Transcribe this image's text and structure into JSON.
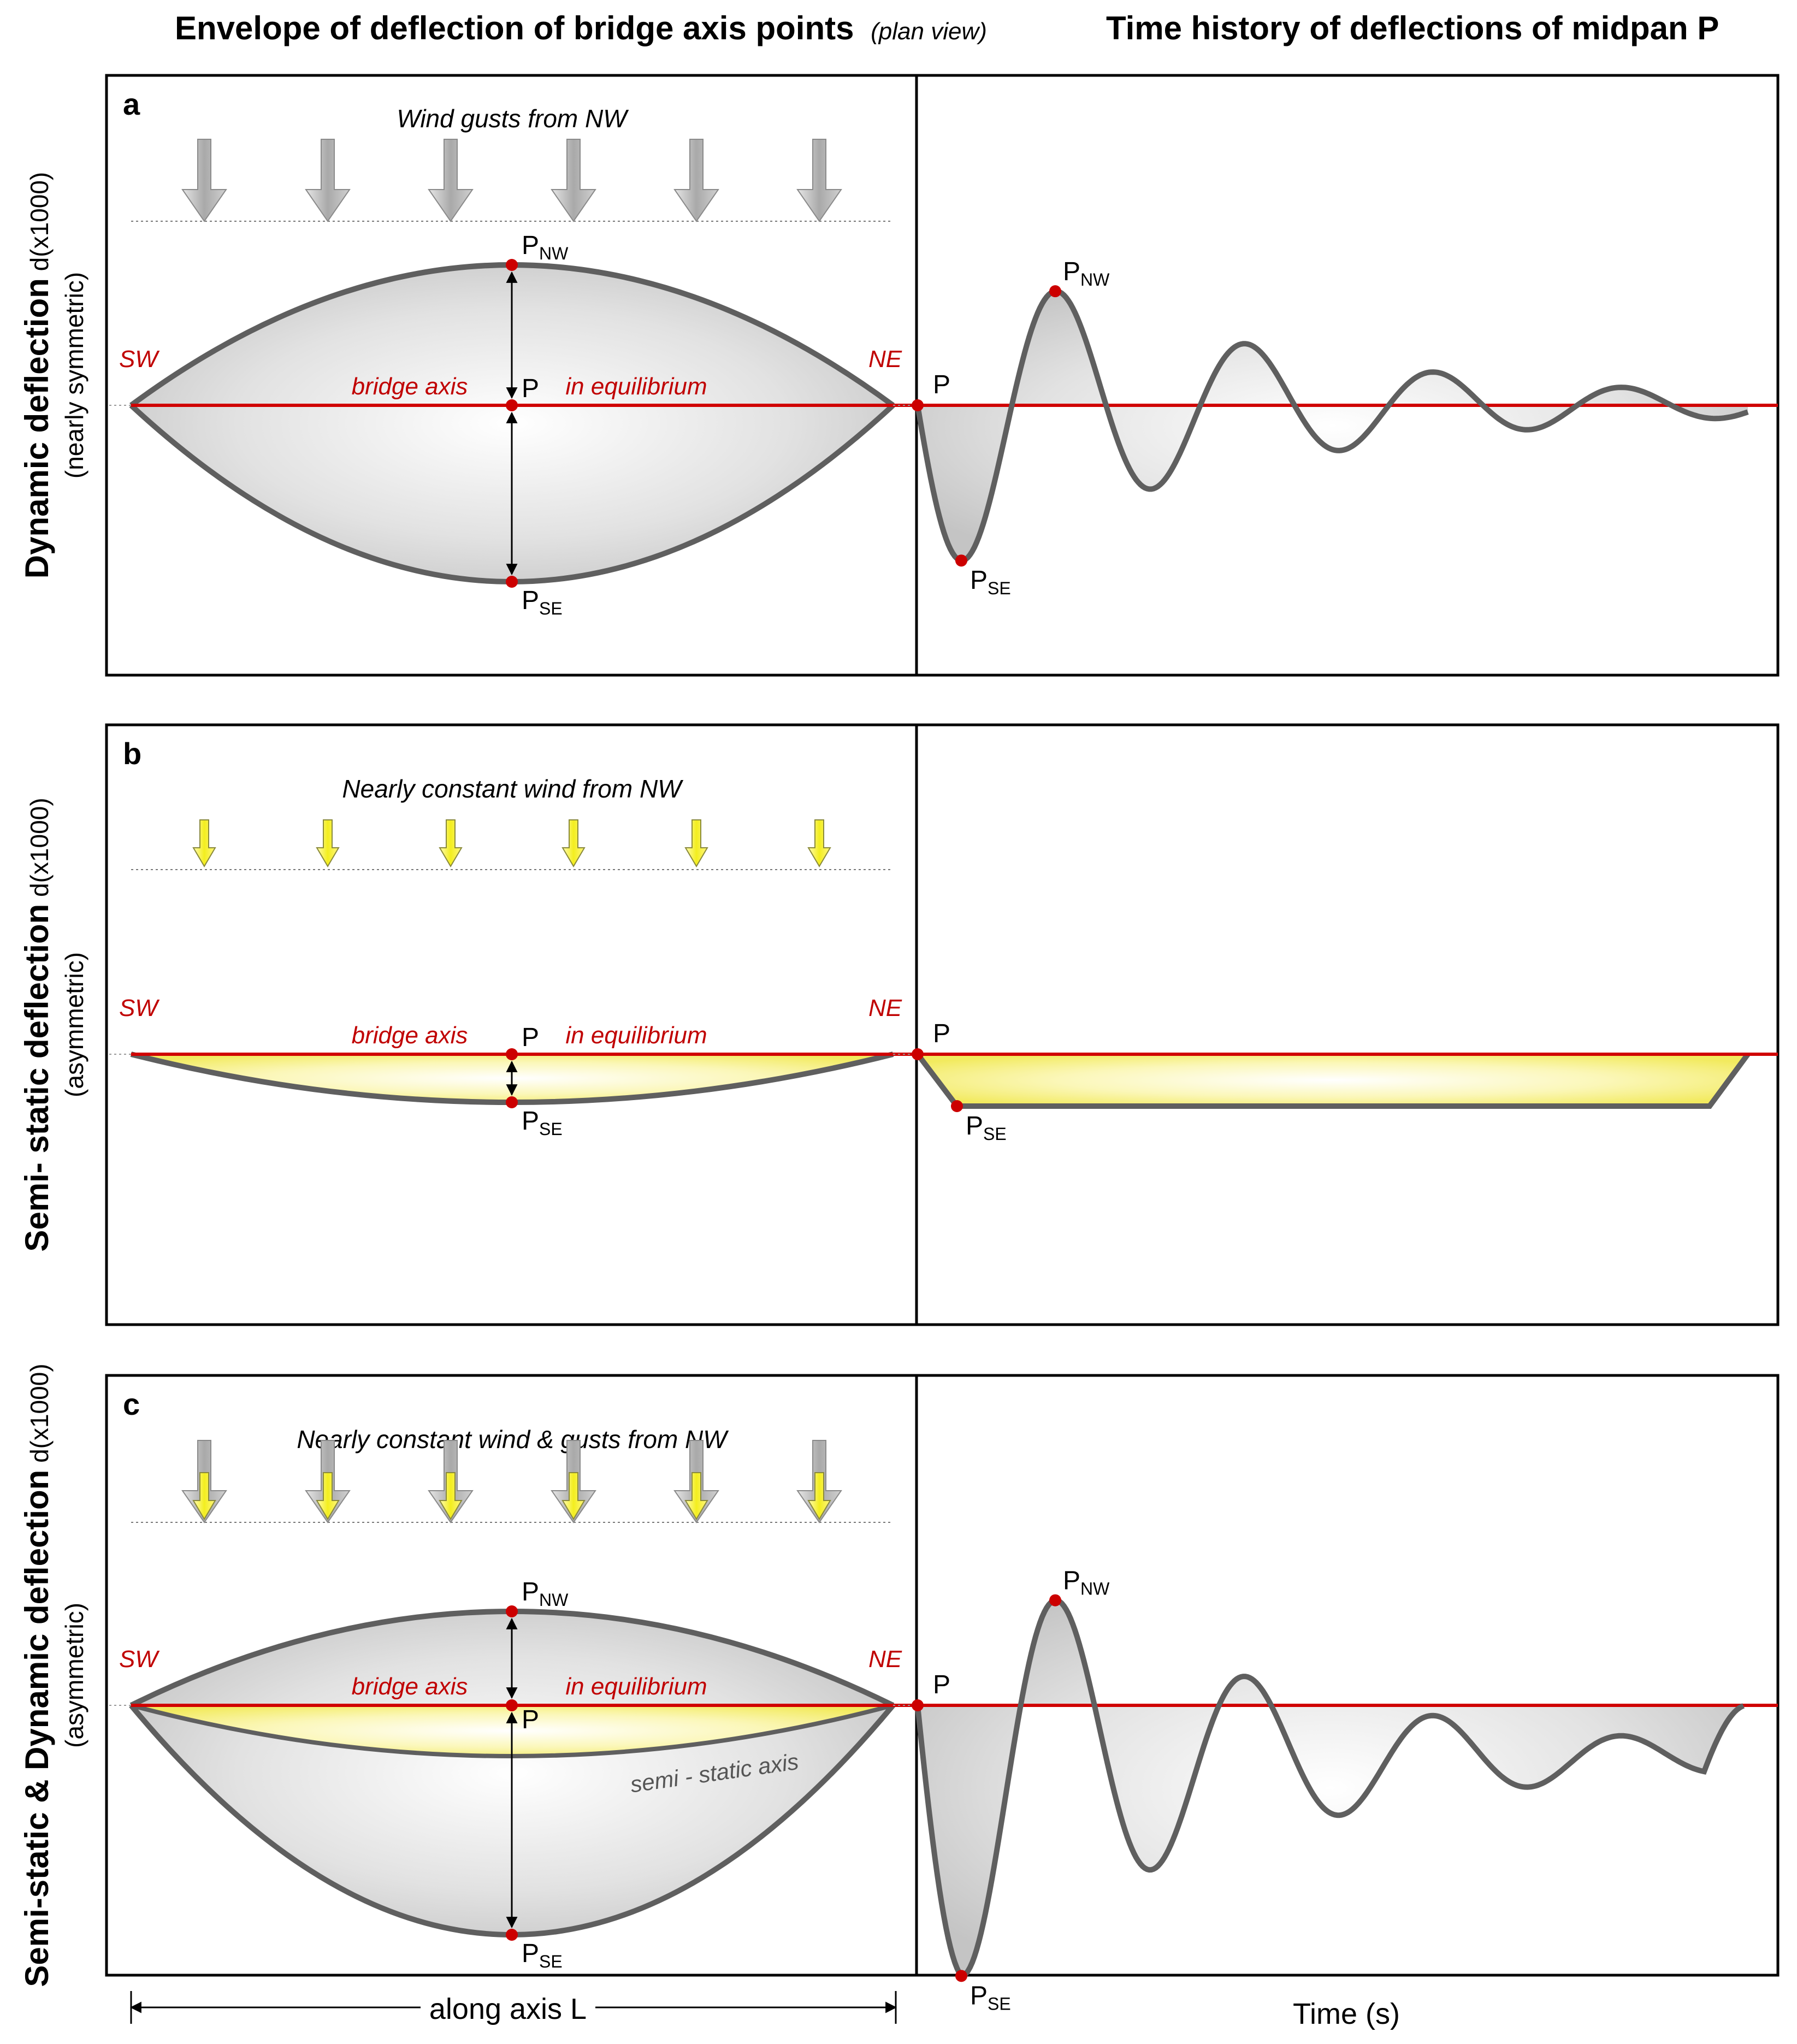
{
  "headers": {
    "left_main": "Envelope of deflection of bridge axis points",
    "left_note": "(plan view)",
    "right": "Time history of deflections of midpan P"
  },
  "rows": [
    {
      "tag": "a",
      "row_label": "Dynamic deflection",
      "row_unit": "d(x1000)",
      "row_sub": "(nearly symmetric)",
      "wind_caption": "Wind gusts from NW",
      "arrow_style": "gray",
      "envelope_top": true,
      "envelope_bottom": true,
      "semi_static_axis": false
    },
    {
      "tag": "b",
      "row_label": "Semi- static deflection",
      "row_unit": "d(x1000)",
      "row_sub": "(asymmetric)",
      "wind_caption": "Nearly constant wind from NW",
      "arrow_style": "yellow",
      "envelope_top": false,
      "envelope_bottom": true,
      "semi_static_axis": false
    },
    {
      "tag": "c",
      "row_label": "Semi-static & Dynamic deflection",
      "row_unit": "d(x1000)",
      "row_sub": "(asymmetric)",
      "wind_caption": "Nearly constant wind & gusts from NW",
      "arrow_style": "combined",
      "envelope_top": true,
      "envelope_bottom": true,
      "semi_static_axis": true,
      "semi_static_label": "semi - static axis"
    }
  ],
  "labels": {
    "sw": "SW",
    "ne": "NE",
    "bridge_axis": "bridge axis",
    "equilibrium": "in equilibrium",
    "point": "P",
    "point_nw_sub": "NW",
    "point_se_sub": "SE"
  },
  "bottom_axes": {
    "left": "along axis L",
    "right": "Time (s)"
  },
  "colors": {
    "axis_red": "#d00000",
    "outline": "#5f5f5f",
    "gray_fill": "#c8c8c8",
    "yellow_fill": "#f4ee6a",
    "arrow_gray": "#b0b0b0",
    "arrow_yellow": "#ffff44",
    "point_red": "#cc0000"
  }
}
